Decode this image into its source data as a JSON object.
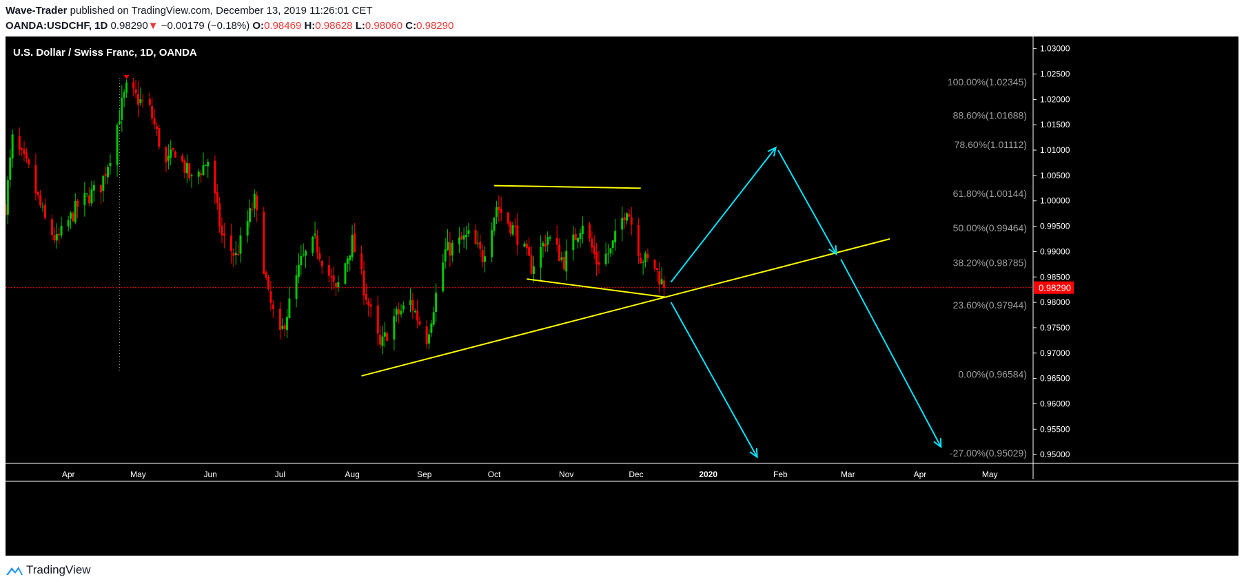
{
  "header": {
    "author": "Wave-Trader",
    "published_text": " published on TradingView.com, December 13, 2019 11:26:01 CET",
    "symbol": "OANDA:USDCHF, 1D",
    "last": "0.98290",
    "change_arrow": "▼",
    "change": "−0.00179 (−0.18%)",
    "o_label": "O:",
    "o_value": "0.98469",
    "h_label": "H:",
    "h_value": "0.98628",
    "l_label": "L:",
    "l_value": "0.98060",
    "c_label": "C:",
    "c_value": "0.98290"
  },
  "footer": {
    "logo_text": "TradingView",
    "logo_icon": "tradingview-logo-icon"
  },
  "colors": {
    "up": "#00c805",
    "down": "#ff0000",
    "trendline": "#ffff00",
    "arrow": "#00e5ff",
    "fib_text": "#9e9e9e",
    "price_line": "#ff0000",
    "price_label_bg": "#ff0000"
  },
  "chart_data": {
    "type": "candlestick",
    "title": "U.S. Dollar / Swiss Franc, 1D, OANDA",
    "ylim": [
      0.9465,
      1.0335
    ],
    "y_ticks": [
      "1.03000",
      "1.02500",
      "1.02000",
      "1.01500",
      "1.01000",
      "1.00500",
      "1.00000",
      "0.99500",
      "0.99000",
      "0.98500",
      "0.98000",
      "0.97500",
      "0.97000",
      "0.96500",
      "0.96000",
      "0.95500",
      "0.95000"
    ],
    "x_ticks": [
      {
        "label": "Apr",
        "date": "2019-04-01"
      },
      {
        "label": "May",
        "date": "2019-05-01"
      },
      {
        "label": "Jun",
        "date": "2019-06-01"
      },
      {
        "label": "Jul",
        "date": "2019-07-01"
      },
      {
        "label": "Aug",
        "date": "2019-08-01"
      },
      {
        "label": "Sep",
        "date": "2019-09-01"
      },
      {
        "label": "Oct",
        "date": "2019-10-01"
      },
      {
        "label": "Nov",
        "date": "2019-11-01"
      },
      {
        "label": "Dec",
        "date": "2019-12-01"
      },
      {
        "label": "2020",
        "date": "2020-01-01"
      },
      {
        "label": "Feb",
        "date": "2020-02-01"
      },
      {
        "label": "Mar",
        "date": "2020-03-01"
      },
      {
        "label": "Apr",
        "date": "2020-04-01"
      },
      {
        "label": "May",
        "date": "2020-05-01"
      }
    ],
    "x_range": [
      "2019-03-05",
      "2020-05-19"
    ],
    "last_price": 0.9829,
    "last_price_label": "0.98290",
    "fib_levels": [
      {
        "label": "100.00%(1.02345)",
        "price": 1.02345
      },
      {
        "label": "88.60%(1.01688)",
        "price": 1.01688
      },
      {
        "label": "78.60%(1.01112)",
        "price": 1.01112
      },
      {
        "label": "61.80%(1.00144)",
        "price": 1.00144
      },
      {
        "label": "50.00%(0.99464)",
        "price": 0.99464
      },
      {
        "label": "38.20%(0.98785)",
        "price": 0.98785
      },
      {
        "label": "23.60%(0.97944)",
        "price": 0.97944
      },
      {
        "label": "0.00%(0.96584)",
        "price": 0.96584
      },
      {
        "label": "-27.00%(0.95029)",
        "price": 0.95029
      }
    ],
    "anchors": [
      {
        "date": "2019-03-05",
        "close": 0.999
      },
      {
        "date": "2019-03-08",
        "close": 1.012
      },
      {
        "date": "2019-03-15",
        "close": 1.006
      },
      {
        "date": "2019-03-22",
        "close": 0.996
      },
      {
        "date": "2019-03-27",
        "close": 0.992
      },
      {
        "date": "2019-04-05",
        "close": 0.999
      },
      {
        "date": "2019-04-15",
        "close": 1.003
      },
      {
        "date": "2019-04-19",
        "close": 1.009
      },
      {
        "date": "2019-04-24",
        "close": 1.019
      },
      {
        "date": "2019-04-26",
        "close": 1.022
      },
      {
        "date": "2019-05-06",
        "close": 1.018
      },
      {
        "date": "2019-05-13",
        "close": 1.007
      },
      {
        "date": "2019-05-17",
        "close": 1.01
      },
      {
        "date": "2019-05-24",
        "close": 1.004
      },
      {
        "date": "2019-05-31",
        "close": 1.008
      },
      {
        "date": "2019-06-06",
        "close": 0.993
      },
      {
        "date": "2019-06-12",
        "close": 0.989
      },
      {
        "date": "2019-06-20",
        "close": 1.0
      },
      {
        "date": "2019-06-26",
        "close": 0.981
      },
      {
        "date": "2019-07-01",
        "close": 0.973
      },
      {
        "date": "2019-07-10",
        "close": 0.988
      },
      {
        "date": "2019-07-16",
        "close": 0.992
      },
      {
        "date": "2019-07-25",
        "close": 0.982
      },
      {
        "date": "2019-08-01",
        "close": 0.992
      },
      {
        "date": "2019-08-06",
        "close": 0.983
      },
      {
        "date": "2019-08-13",
        "close": 0.971
      },
      {
        "date": "2019-08-19",
        "close": 0.977
      },
      {
        "date": "2019-08-26",
        "close": 0.98
      },
      {
        "date": "2019-09-02",
        "close": 0.973
      },
      {
        "date": "2019-09-10",
        "close": 0.99
      },
      {
        "date": "2019-09-20",
        "close": 0.993
      },
      {
        "date": "2019-09-26",
        "close": 0.989
      },
      {
        "date": "2019-10-02",
        "close": 0.999
      },
      {
        "date": "2019-10-10",
        "close": 0.994
      },
      {
        "date": "2019-10-17",
        "close": 0.987
      },
      {
        "date": "2019-10-24",
        "close": 0.993
      },
      {
        "date": "2019-10-31",
        "close": 0.988
      },
      {
        "date": "2019-11-08",
        "close": 0.996
      },
      {
        "date": "2019-11-14",
        "close": 0.988
      },
      {
        "date": "2019-11-20",
        "close": 0.99
      },
      {
        "date": "2019-11-27",
        "close": 0.999
      },
      {
        "date": "2019-12-03",
        "close": 0.989
      },
      {
        "date": "2019-12-09",
        "close": 0.987
      },
      {
        "date": "2019-12-13",
        "close": 0.9829
      }
    ],
    "trendlines": [
      {
        "from": {
          "date": "2019-08-05",
          "price": 0.9655
        },
        "to": {
          "date": "2020-03-19",
          "price": 0.9925
        }
      },
      {
        "from": {
          "date": "2019-10-01",
          "price": 1.003
        },
        "to": {
          "date": "2019-12-03",
          "price": 1.0025
        }
      },
      {
        "from": {
          "date": "2019-10-15",
          "price": 0.9846
        },
        "to": {
          "date": "2019-12-14",
          "price": 0.981
        }
      }
    ],
    "projection_arrows": [
      {
        "from": {
          "date": "2019-12-16",
          "price": 0.984
        },
        "to": {
          "date": "2020-01-30",
          "price": 1.0105
        }
      },
      {
        "from": {
          "date": "2020-01-31",
          "price": 1.01
        },
        "to": {
          "date": "2020-02-25",
          "price": 0.9895
        }
      },
      {
        "from": {
          "date": "2020-02-27",
          "price": 0.9885
        },
        "to": {
          "date": "2020-04-10",
          "price": 0.9515
        }
      },
      {
        "from": {
          "date": "2019-12-16",
          "price": 0.98
        },
        "to": {
          "date": "2020-01-22",
          "price": 0.9495
        }
      }
    ],
    "high_marker": {
      "date": "2019-04-26",
      "price": 1.024
    },
    "crosshair_date": "2019-04-23"
  }
}
